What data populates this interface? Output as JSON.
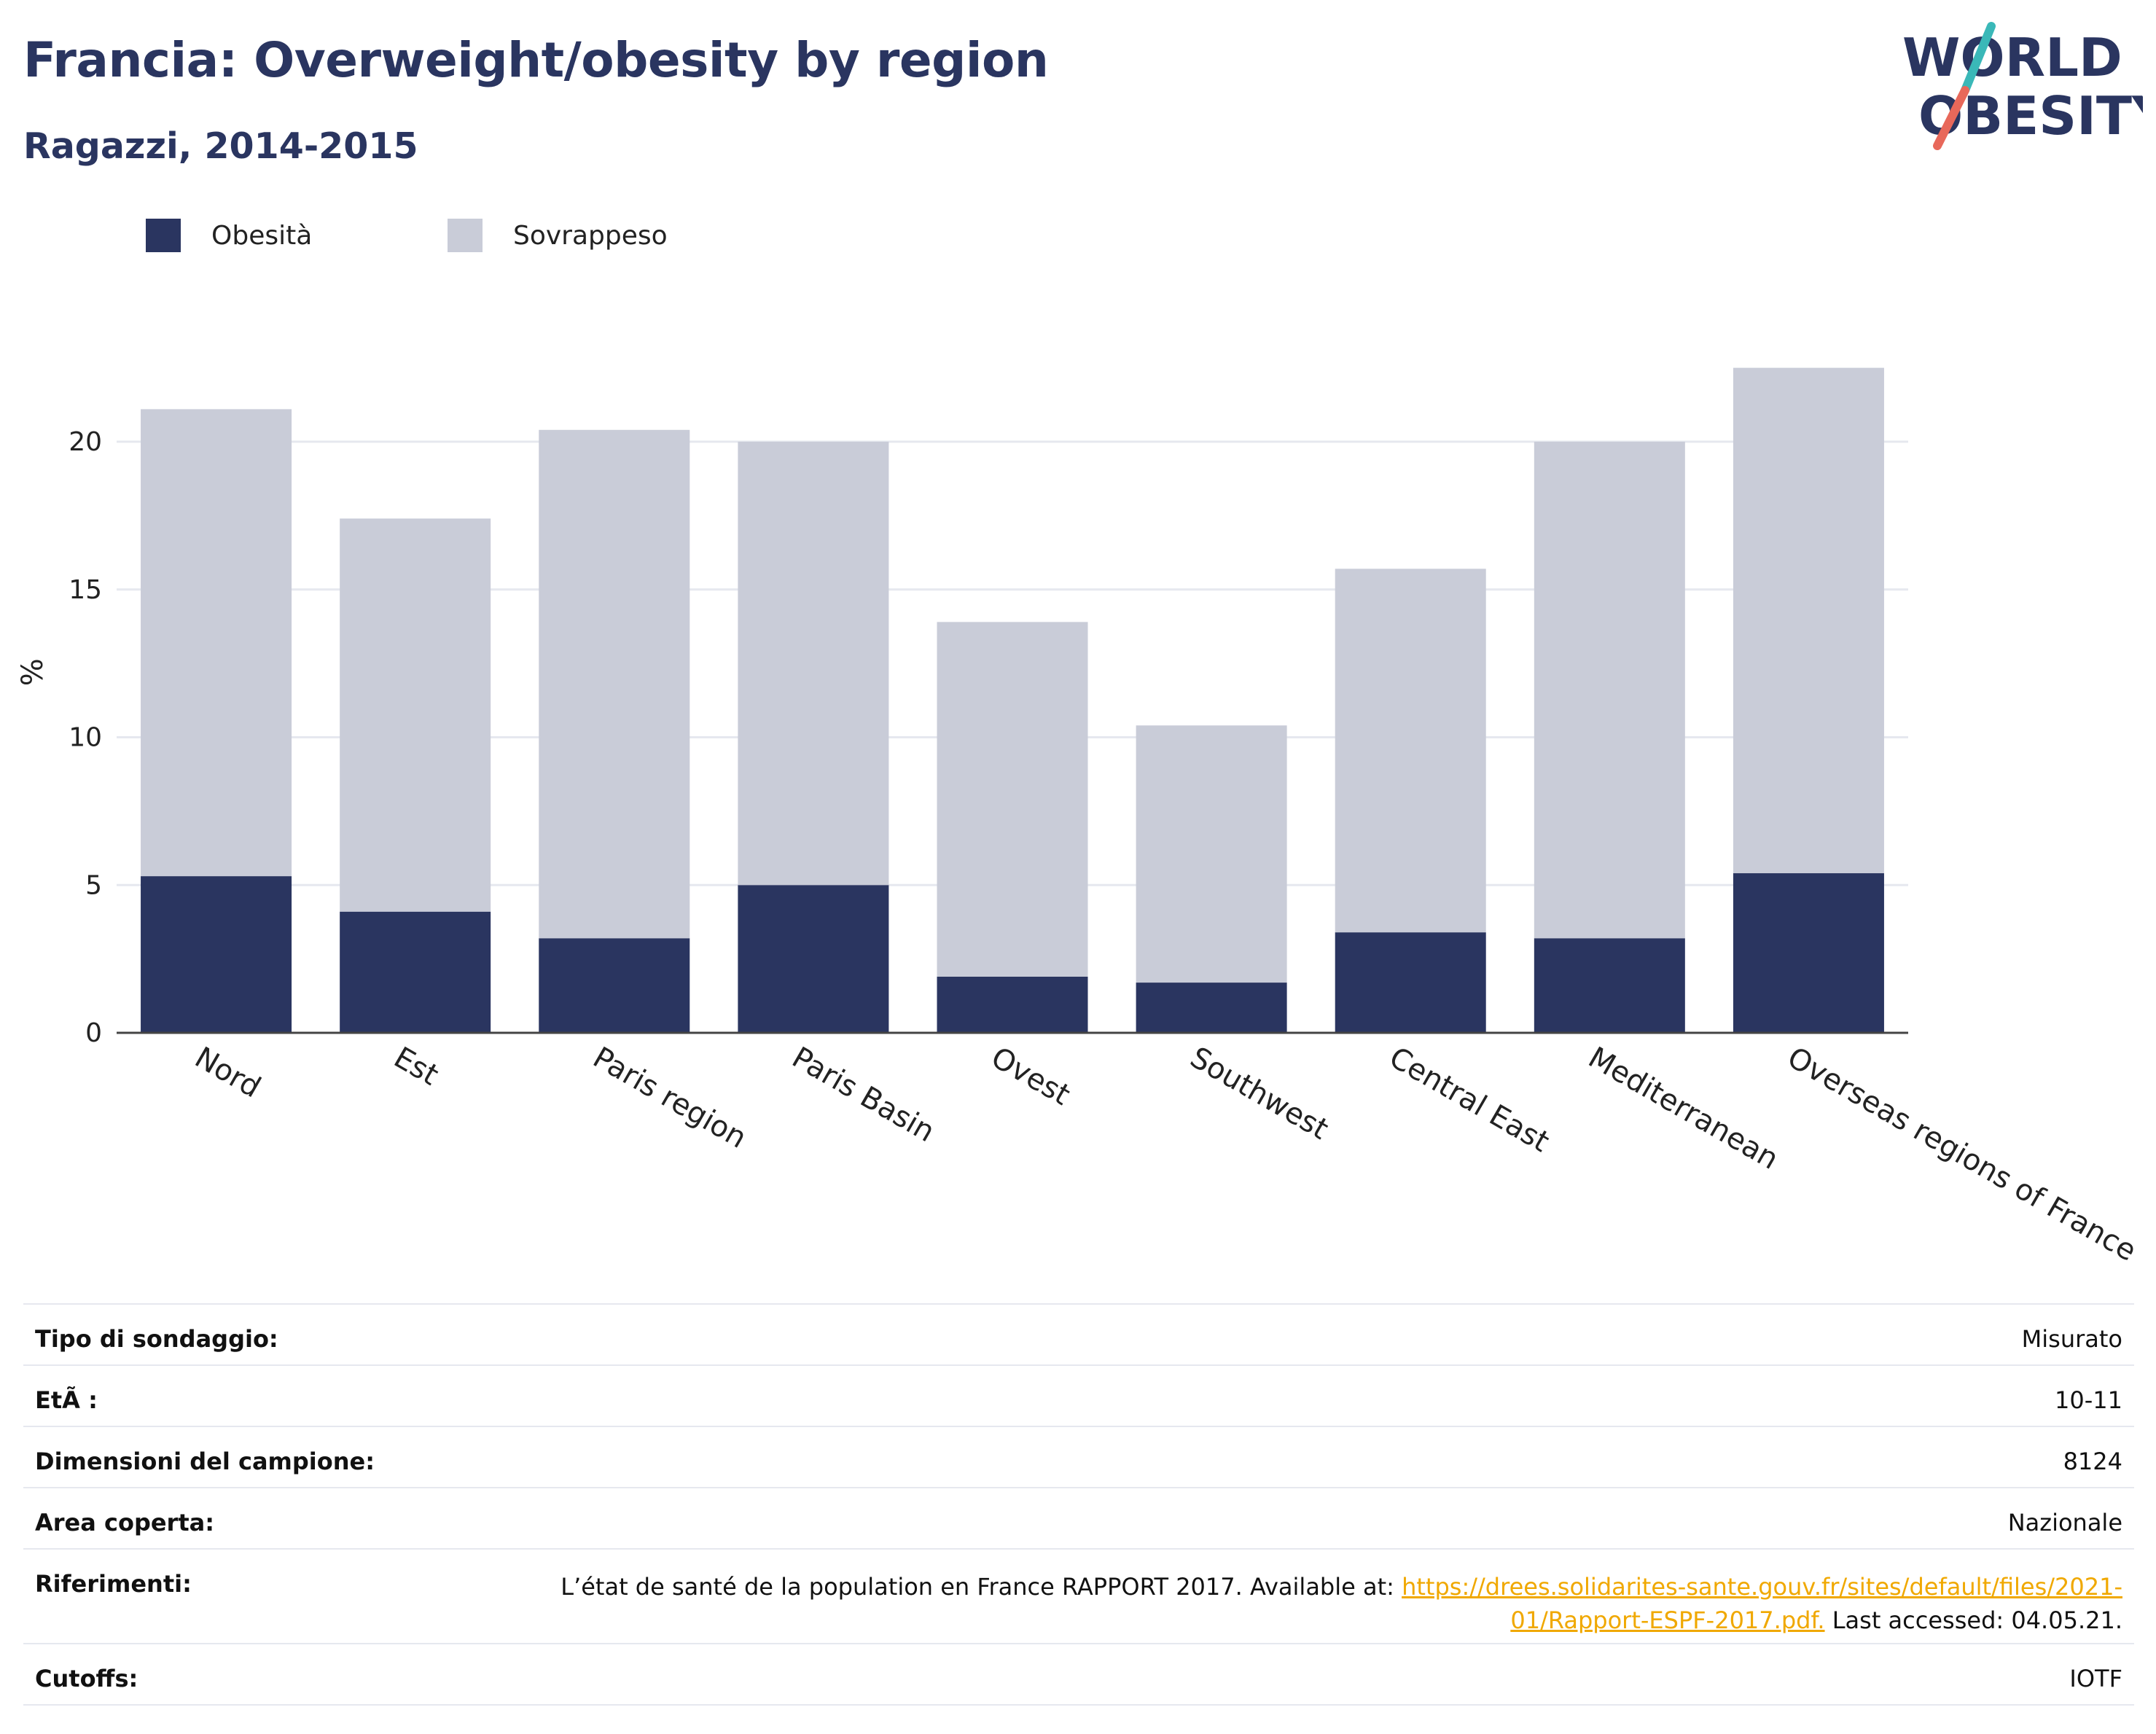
{
  "header": {
    "title": "Francia: Overweight/obesity by region",
    "subtitle": "Ragazzi, 2014-2015"
  },
  "logo": {
    "line1": "WORLD",
    "line2": "OBESITY",
    "colors": {
      "text": "#2a3560",
      "slash_top": "#3ab8b8",
      "slash_bottom": "#e8685a"
    }
  },
  "legend": {
    "items": [
      {
        "label": "Obesità",
        "color": "#2a3560"
      },
      {
        "label": "Sovrappeso",
        "color": "#c9ccd8"
      }
    ]
  },
  "chart_data": {
    "type": "bar",
    "stacked": true,
    "ylabel": "%",
    "ylim": [
      0,
      23
    ],
    "yticks": [
      0,
      5,
      10,
      15,
      20
    ],
    "grid": true,
    "legend_position": "top-left",
    "categories": [
      "Nord",
      "Est",
      "Paris region",
      "Paris Basin",
      "Ovest",
      "Southwest",
      "Central East",
      "Mediterranean",
      "Overseas regions of France"
    ],
    "series": [
      {
        "name": "Obesità",
        "color": "#2a3560",
        "values": [
          5.3,
          4.1,
          3.2,
          5.0,
          1.9,
          1.7,
          3.4,
          3.2,
          5.4
        ]
      },
      {
        "name": "Sovrappeso",
        "color": "#c9ccd8",
        "values": [
          15.8,
          13.3,
          17.2,
          15.0,
          12.0,
          8.7,
          12.3,
          16.8,
          17.1
        ]
      }
    ]
  },
  "details": {
    "survey_type": {
      "label": "Tipo di sondaggio:",
      "value": "Misurato"
    },
    "age": {
      "label": "EtÃ :",
      "value": "10-11"
    },
    "sample_size": {
      "label": "Dimensioni del campione:",
      "value": "8124"
    },
    "area": {
      "label": "Area coperta:",
      "value": "Nazionale"
    },
    "references": {
      "label": "Riferimenti:",
      "text_before": "L’état de santé de la population en France RAPPORT 2017. Available at: ",
      "link_part1": "https://drees.solidarites-sante.gouv.fr/sites/default/files/2021-",
      "link_part2": "01/Rapport-ESPF-2017.pdf.",
      "text_after": " Last accessed: 04.05.21."
    },
    "cutoffs": {
      "label": "Cutoffs:",
      "value": "IOTF"
    }
  }
}
